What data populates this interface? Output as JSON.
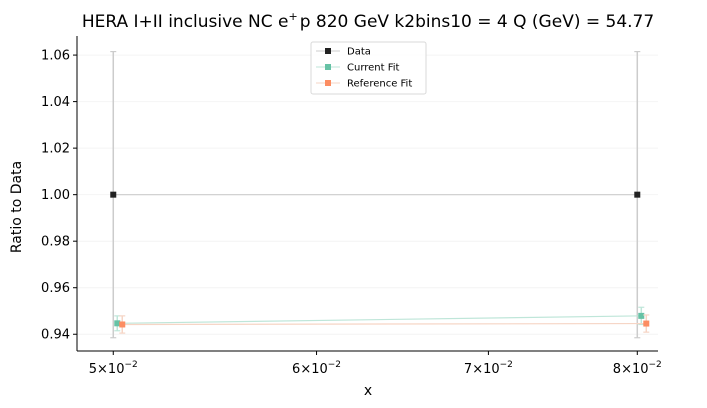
{
  "chart_data": {
    "type": "line",
    "title_main": "HERA I+II inclusive NC e",
    "title_sup": "+",
    "title_rest": "p 820 GeV k2bins10 = 4 Q (GeV) = 54.77",
    "xlabel": "x",
    "ylabel": "Ratio to Data",
    "xscale": "log",
    "xlim": [
      0.0484,
      0.0815
    ],
    "ylim": [
      0.9328,
      1.0682
    ],
    "grid": "faint horizontal",
    "legend_position": "top-center",
    "yticks": [
      {
        "value": 0.94,
        "label": "0.94"
      },
      {
        "value": 0.96,
        "label": "0.96"
      },
      {
        "value": 0.98,
        "label": "0.98"
      },
      {
        "value": 1.0,
        "label": "1.00"
      },
      {
        "value": 1.02,
        "label": "1.02"
      },
      {
        "value": 1.04,
        "label": "1.04"
      },
      {
        "value": 1.06,
        "label": "1.06"
      }
    ],
    "xticks": [
      {
        "value": 0.05,
        "mant": "5",
        "exp": "−2"
      },
      {
        "value": 0.06,
        "mant": "6",
        "exp": "−2"
      },
      {
        "value": 0.07,
        "mant": "7",
        "exp": "−2"
      },
      {
        "value": 0.08,
        "mant": "8",
        "exp": "−2"
      }
    ],
    "series": [
      {
        "name": "Data",
        "color": "#222222",
        "line_color": "#cccccc",
        "points": [
          {
            "x": 0.05,
            "y": 1.0,
            "err": 0.0615
          },
          {
            "x": 0.08,
            "y": 1.0,
            "err": 0.0615
          }
        ]
      },
      {
        "name": "Current Fit",
        "color": "#66c2a5",
        "line_color": "#bfe6d9",
        "points": [
          {
            "x": 0.05,
            "y": 0.9447,
            "err": 0.0032
          },
          {
            "x": 0.08,
            "y": 0.9479,
            "err": 0.0037
          }
        ]
      },
      {
        "name": "Reference Fit",
        "color": "#fc8d62",
        "line_color": "#f6d5c5",
        "points": [
          {
            "x": 0.05,
            "y": 0.9442,
            "err": 0.0037
          },
          {
            "x": 0.08,
            "y": 0.9446,
            "err": 0.0037
          }
        ]
      }
    ]
  }
}
